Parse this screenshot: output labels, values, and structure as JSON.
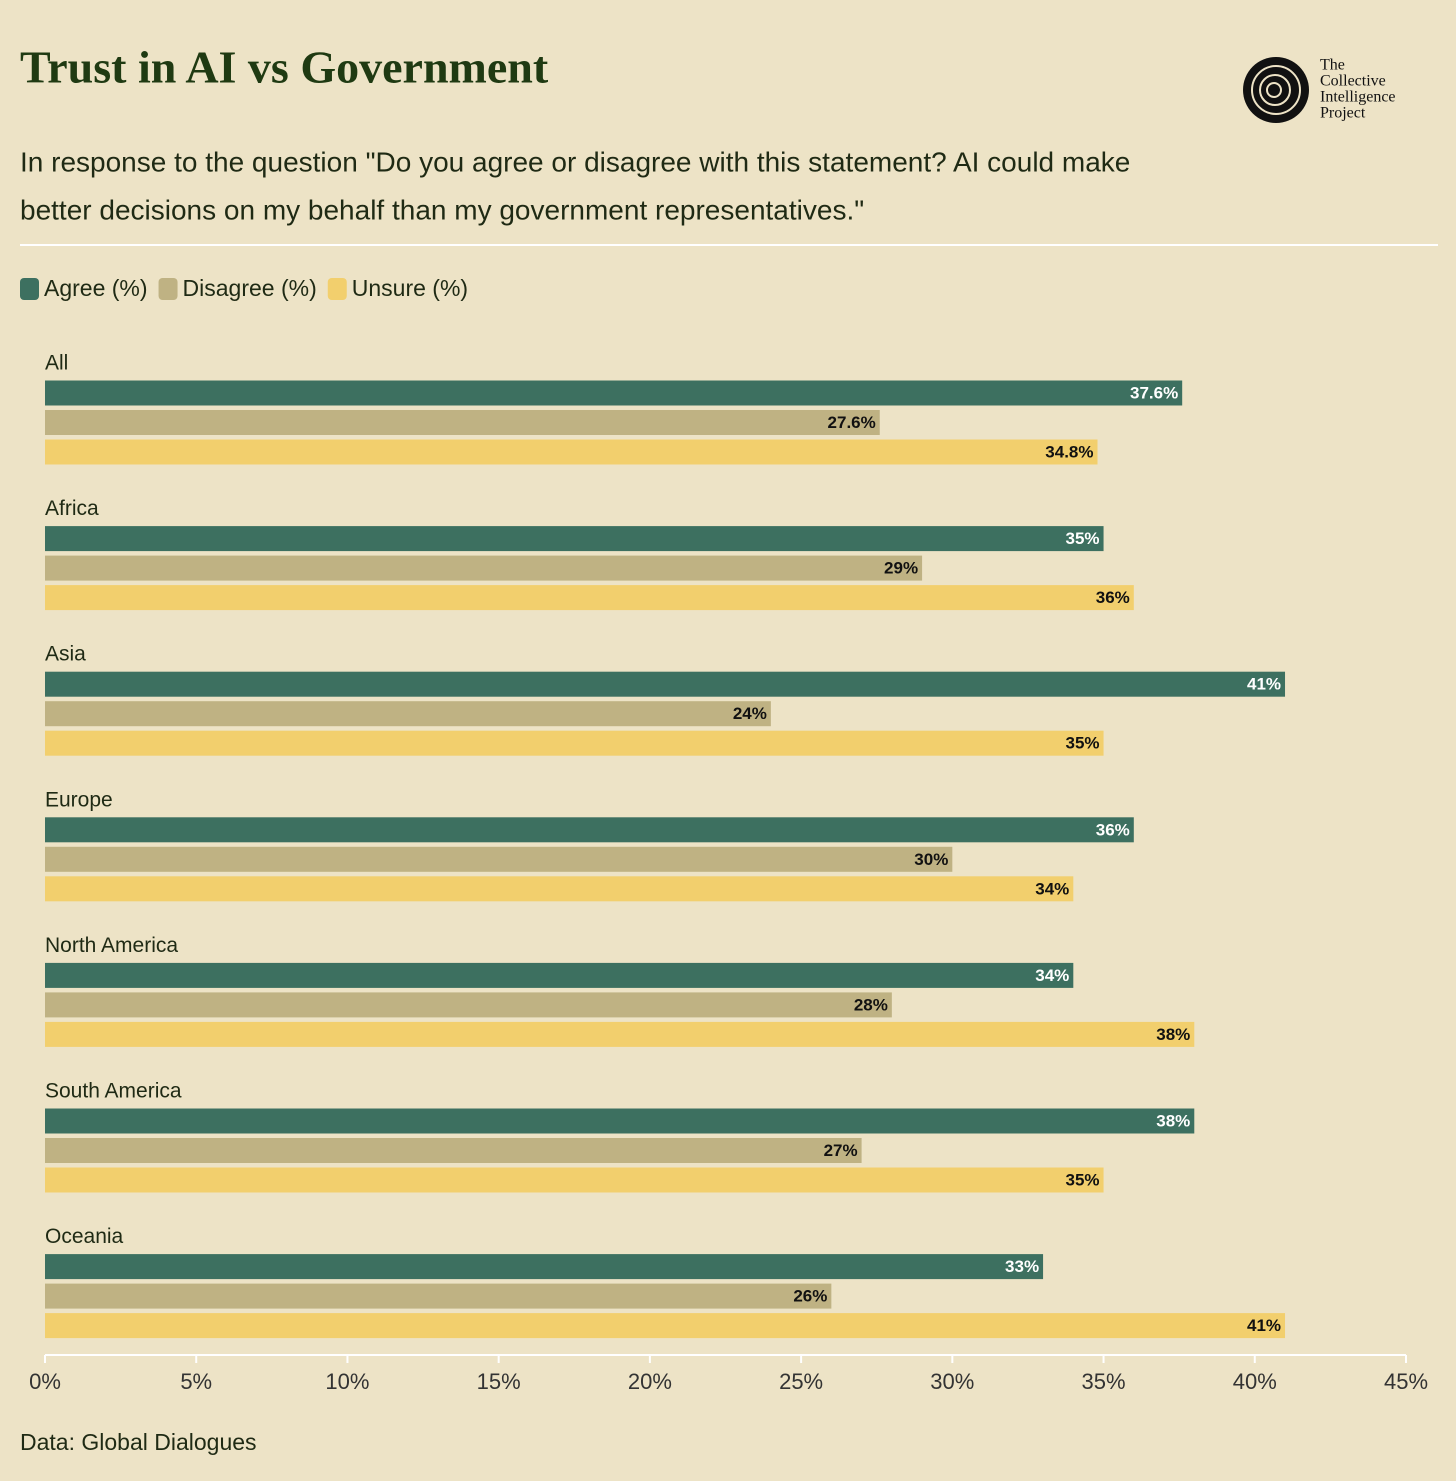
{
  "chart_data": {
    "type": "bar",
    "orientation": "horizontal",
    "title": "Trust in AI vs Government",
    "subtitle": [
      "In response to the question \"Do you agree or disagree with this statement? AI could make",
      "better decisions on my behalf than my government representatives.\""
    ],
    "logo_text": [
      "The",
      "Collective",
      "Intelligence",
      "Project"
    ],
    "source": "Data: Global Dialogues",
    "categories": [
      "All",
      "Africa",
      "Asia",
      "Europe",
      "North America",
      "South America",
      "Oceania"
    ],
    "series": [
      {
        "name": "Agree (%)",
        "color": "#3d7060",
        "label_color": "#ffffff",
        "values": [
          37.6,
          35,
          41,
          36,
          34,
          38,
          33
        ],
        "value_labels": [
          "37.6%",
          "35%",
          "41%",
          "36%",
          "34%",
          "38%",
          "33%"
        ]
      },
      {
        "name": "Disagree (%)",
        "color": "#bfb283",
        "label_color": "#111111",
        "values": [
          27.6,
          29,
          24,
          30,
          28,
          27,
          26
        ],
        "value_labels": [
          "27.6%",
          "29%",
          "24%",
          "30%",
          "28%",
          "27%",
          "26%"
        ]
      },
      {
        "name": "Unsure (%)",
        "color": "#f2cf6d",
        "label_color": "#111111",
        "values": [
          34.8,
          36,
          35,
          34,
          38,
          35,
          41
        ],
        "value_labels": [
          "34.8%",
          "36%",
          "35%",
          "34%",
          "38%",
          "35%",
          "41%"
        ]
      }
    ],
    "xlim": [
      0,
      45
    ],
    "xticks": [
      {
        "value": 0,
        "label": "0%"
      },
      {
        "value": 5,
        "label": "5%"
      },
      {
        "value": 10,
        "label": "10%"
      },
      {
        "value": 15,
        "label": "15%"
      },
      {
        "value": 20,
        "label": "20%"
      },
      {
        "value": 25,
        "label": "25%"
      },
      {
        "value": 30,
        "label": "30%"
      },
      {
        "value": 35,
        "label": "35%"
      },
      {
        "value": 40,
        "label": "40%"
      },
      {
        "value": 45,
        "label": "45%"
      }
    ],
    "grid": false
  }
}
